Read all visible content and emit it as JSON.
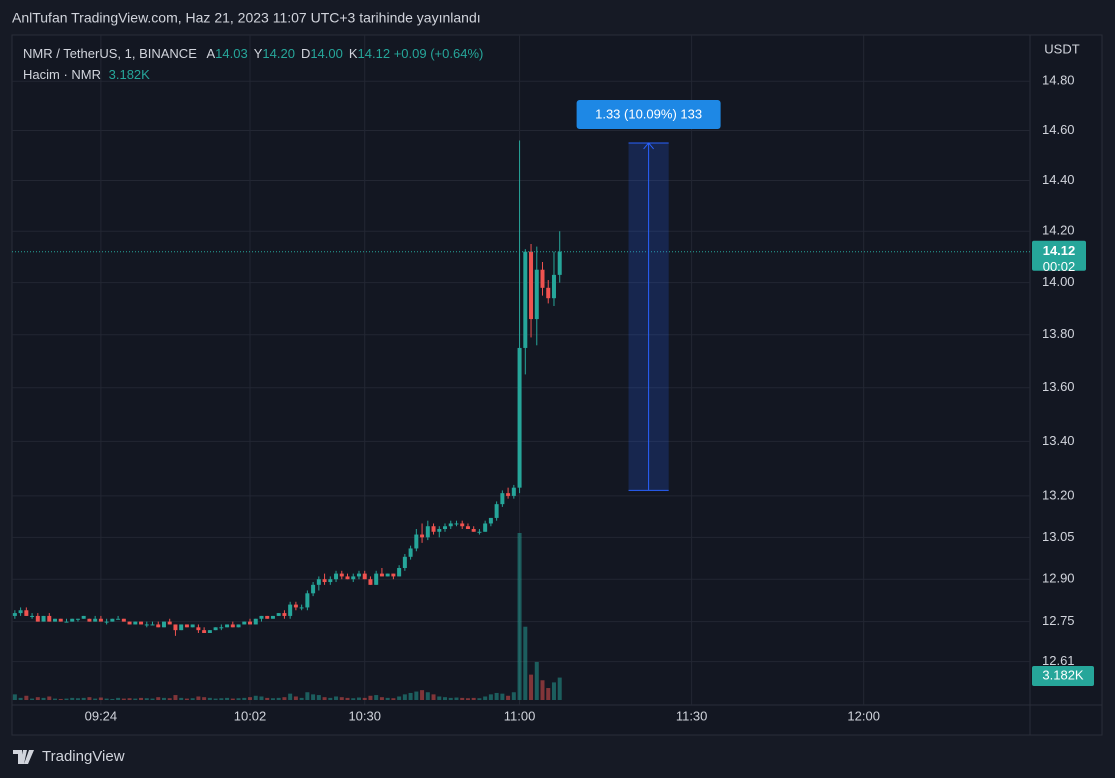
{
  "page": {
    "publish_note": "AnlTufan TradingView.com, Haz 21, 2023 11:07 UTC+3 tarihinde yayınlandı",
    "footer": "TradingView"
  },
  "chart_data": {
    "type": "candlestick",
    "symbol": "NMR / TetherUS, 1, BINANCE",
    "ohlc_legend": [
      {
        "key": "A",
        "value": "14.03"
      },
      {
        "key": "Y",
        "value": "14.20"
      },
      {
        "key": "D",
        "value": "14.00"
      },
      {
        "key": "K",
        "value": "14.12"
      }
    ],
    "change": "+0.09 (+0.64%)",
    "volume_title": "Hacim · NMR",
    "volume_label": "3.182K",
    "price_unit": "USDT",
    "last_price_label": "14.12",
    "countdown": "00:02",
    "up_color": "#26a69a",
    "down_color": "#ef5350",
    "log_scale": true,
    "grid": true,
    "xlim": [
      -0.5,
      177
    ],
    "ylim": [
      12.46,
      14.99
    ],
    "xticks": [
      {
        "value": 15,
        "label": "09:24"
      },
      {
        "value": 41,
        "label": "10:02"
      },
      {
        "value": 61,
        "label": "10:30"
      },
      {
        "value": 88,
        "label": "11:00"
      },
      {
        "value": 118,
        "label": "11:30"
      },
      {
        "value": 148,
        "label": "12:00"
      }
    ],
    "yticks": [
      12.61,
      12.75,
      {
        "value": 12.9,
        "label": "12.90"
      },
      13.05,
      {
        "value": 13.2,
        "label": "13.20"
      },
      {
        "value": 13.4,
        "label": "13.40"
      },
      {
        "value": 13.6,
        "label": "13.60"
      },
      {
        "value": 13.8,
        "label": "13.80"
      },
      {
        "value": 14,
        "label": "14.00"
      },
      {
        "value": 14.2,
        "label": "14.20"
      },
      {
        "value": 14.4,
        "label": "14.40"
      },
      {
        "value": 14.6,
        "label": "14.60"
      },
      {
        "value": 14.8,
        "label": "14.80"
      }
    ],
    "x": [
      0,
      1,
      2,
      3,
      4,
      5,
      6,
      7,
      8,
      9,
      10,
      11,
      12,
      13,
      14,
      15,
      16,
      17,
      18,
      19,
      20,
      21,
      22,
      23,
      24,
      25,
      26,
      27,
      28,
      29,
      30,
      31,
      32,
      33,
      34,
      35,
      36,
      37,
      38,
      39,
      40,
      41,
      42,
      43,
      44,
      45,
      46,
      47,
      48,
      49,
      50,
      51,
      52,
      53,
      54,
      55,
      56,
      57,
      58,
      59,
      60,
      61,
      62,
      63,
      64,
      65,
      66,
      67,
      68,
      69,
      70,
      71,
      72,
      73,
      74,
      75,
      76,
      77,
      78,
      79,
      80,
      81,
      82,
      83,
      84,
      85,
      86,
      87,
      88,
      89,
      90,
      91,
      92,
      93,
      94,
      95
    ],
    "open": [
      12.77,
      12.78,
      12.79,
      12.77,
      12.77,
      12.75,
      12.77,
      12.75,
      12.76,
      12.75,
      12.75,
      12.76,
      12.76,
      12.76,
      12.75,
      12.76,
      12.75,
      12.75,
      12.76,
      12.76,
      12.75,
      12.74,
      12.75,
      12.74,
      12.74,
      12.74,
      12.73,
      12.75,
      12.74,
      12.72,
      12.74,
      12.73,
      12.73,
      12.72,
      12.71,
      12.72,
      12.73,
      12.73,
      12.74,
      12.73,
      12.74,
      12.75,
      12.74,
      12.76,
      12.77,
      12.76,
      12.77,
      12.78,
      12.77,
      12.81,
      12.8,
      12.8,
      12.85,
      12.88,
      12.9,
      12.89,
      12.9,
      12.92,
      12.91,
      12.9,
      12.91,
      12.92,
      12.9,
      12.88,
      12.92,
      12.91,
      12.92,
      12.91,
      12.94,
      12.98,
      13.01,
      13.06,
      13.05,
      13.09,
      13.07,
      13.08,
      13.09,
      13.1,
      13.1,
      13.09,
      13.08,
      13.07,
      13.07,
      13.1,
      13.12,
      13.17,
      13.21,
      13.2,
      13.23,
      13.75,
      14.12,
      13.86,
      14.05,
      13.98,
      13.94,
      14.03
    ],
    "high": [
      12.79,
      12.8,
      12.8,
      12.78,
      12.78,
      12.77,
      12.78,
      12.76,
      12.76,
      12.76,
      12.76,
      12.76,
      12.77,
      12.76,
      12.77,
      12.77,
      12.76,
      12.76,
      12.77,
      12.76,
      12.75,
      12.75,
      12.75,
      12.75,
      12.75,
      12.75,
      12.75,
      12.76,
      12.74,
      12.74,
      12.74,
      12.74,
      12.74,
      12.73,
      12.72,
      12.73,
      12.74,
      12.74,
      12.75,
      12.74,
      12.75,
      12.76,
      12.76,
      12.77,
      12.77,
      12.77,
      12.78,
      12.79,
      12.82,
      12.82,
      12.81,
      12.86,
      12.89,
      12.91,
      12.92,
      12.91,
      12.93,
      12.93,
      12.92,
      12.92,
      12.93,
      12.93,
      12.91,
      12.93,
      12.94,
      12.92,
      12.92,
      12.95,
      12.99,
      13.02,
      13.08,
      13.1,
      13.11,
      13.1,
      13.09,
      13.1,
      13.11,
      13.11,
      13.11,
      13.1,
      13.09,
      13.08,
      13.11,
      13.12,
      13.18,
      13.22,
      13.23,
      13.24,
      14.56,
      14.13,
      14.15,
      14.14,
      14.08,
      14.01,
      14.12,
      14.2
    ],
    "low": [
      12.76,
      12.77,
      12.77,
      12.76,
      12.75,
      12.75,
      12.75,
      12.75,
      12.75,
      12.75,
      12.75,
      12.75,
      12.76,
      12.75,
      12.75,
      12.75,
      12.74,
      12.75,
      12.76,
      12.75,
      12.74,
      12.74,
      12.74,
      12.73,
      12.74,
      12.73,
      12.73,
      12.74,
      12.7,
      12.72,
      12.73,
      12.73,
      12.71,
      12.71,
      12.71,
      12.72,
      12.72,
      12.73,
      12.73,
      12.73,
      12.74,
      12.74,
      12.74,
      12.75,
      12.76,
      12.76,
      12.77,
      12.76,
      12.76,
      12.79,
      12.79,
      12.79,
      12.84,
      12.86,
      12.88,
      12.88,
      12.89,
      12.9,
      12.9,
      12.89,
      12.9,
      12.9,
      12.88,
      12.88,
      12.91,
      12.91,
      12.9,
      12.91,
      12.93,
      12.97,
      13.0,
      13.03,
      13.04,
      13.06,
      13.05,
      13.07,
      13.08,
      13.09,
      13.08,
      13.08,
      13.07,
      13.06,
      13.07,
      13.09,
      13.11,
      13.16,
      13.19,
      13.19,
      13.21,
      13.65,
      13.79,
      13.76,
      13.95,
      13.92,
      13.91,
      14.0
    ],
    "close": [
      12.78,
      12.79,
      12.77,
      12.77,
      12.75,
      12.77,
      12.75,
      12.76,
      12.75,
      12.75,
      12.76,
      12.76,
      12.77,
      12.75,
      12.76,
      12.75,
      12.75,
      12.76,
      12.76,
      12.75,
      12.74,
      12.75,
      12.74,
      12.74,
      12.74,
      12.73,
      12.75,
      12.74,
      12.72,
      12.74,
      12.73,
      12.74,
      12.72,
      12.71,
      12.72,
      12.73,
      12.73,
      12.74,
      12.73,
      12.74,
      12.75,
      12.74,
      12.76,
      12.77,
      12.76,
      12.77,
      12.78,
      12.77,
      12.81,
      12.8,
      12.8,
      12.85,
      12.88,
      12.9,
      12.89,
      12.9,
      12.92,
      12.91,
      12.9,
      12.91,
      12.92,
      12.9,
      12.88,
      12.92,
      12.91,
      12.92,
      12.91,
      12.94,
      12.98,
      13.01,
      13.06,
      13.05,
      13.09,
      13.07,
      13.08,
      13.09,
      13.1,
      13.1,
      13.09,
      13.08,
      13.07,
      13.07,
      13.1,
      13.12,
      13.17,
      13.21,
      13.2,
      13.23,
      13.75,
      14.12,
      13.86,
      14.05,
      13.98,
      13.94,
      14.03,
      14.12
    ],
    "volume": [
      800,
      300,
      600,
      200,
      400,
      300,
      500,
      200,
      150,
      200,
      300,
      250,
      300,
      400,
      200,
      350,
      200,
      150,
      300,
      200,
      250,
      200,
      300,
      250,
      200,
      400,
      300,
      250,
      700,
      300,
      200,
      250,
      500,
      400,
      300,
      200,
      250,
      300,
      200,
      250,
      300,
      400,
      600,
      500,
      300,
      250,
      300,
      400,
      900,
      500,
      300,
      1100,
      800,
      700,
      400,
      300,
      500,
      400,
      300,
      250,
      350,
      300,
      600,
      700,
      400,
      300,
      250,
      500,
      800,
      1000,
      1200,
      1400,
      1100,
      800,
      500,
      400,
      300,
      350,
      300,
      250,
      300,
      250,
      500,
      800,
      1000,
      900,
      600,
      1100,
      23700,
      10400,
      3600,
      5400,
      2800,
      1700,
      2500,
      3182
    ],
    "measure": {
      "from": 13.22,
      "to": 14.55,
      "x_start": 107,
      "x_end": 114,
      "label": "1.33 (10.09%) 133",
      "color": "#2962ff"
    }
  }
}
